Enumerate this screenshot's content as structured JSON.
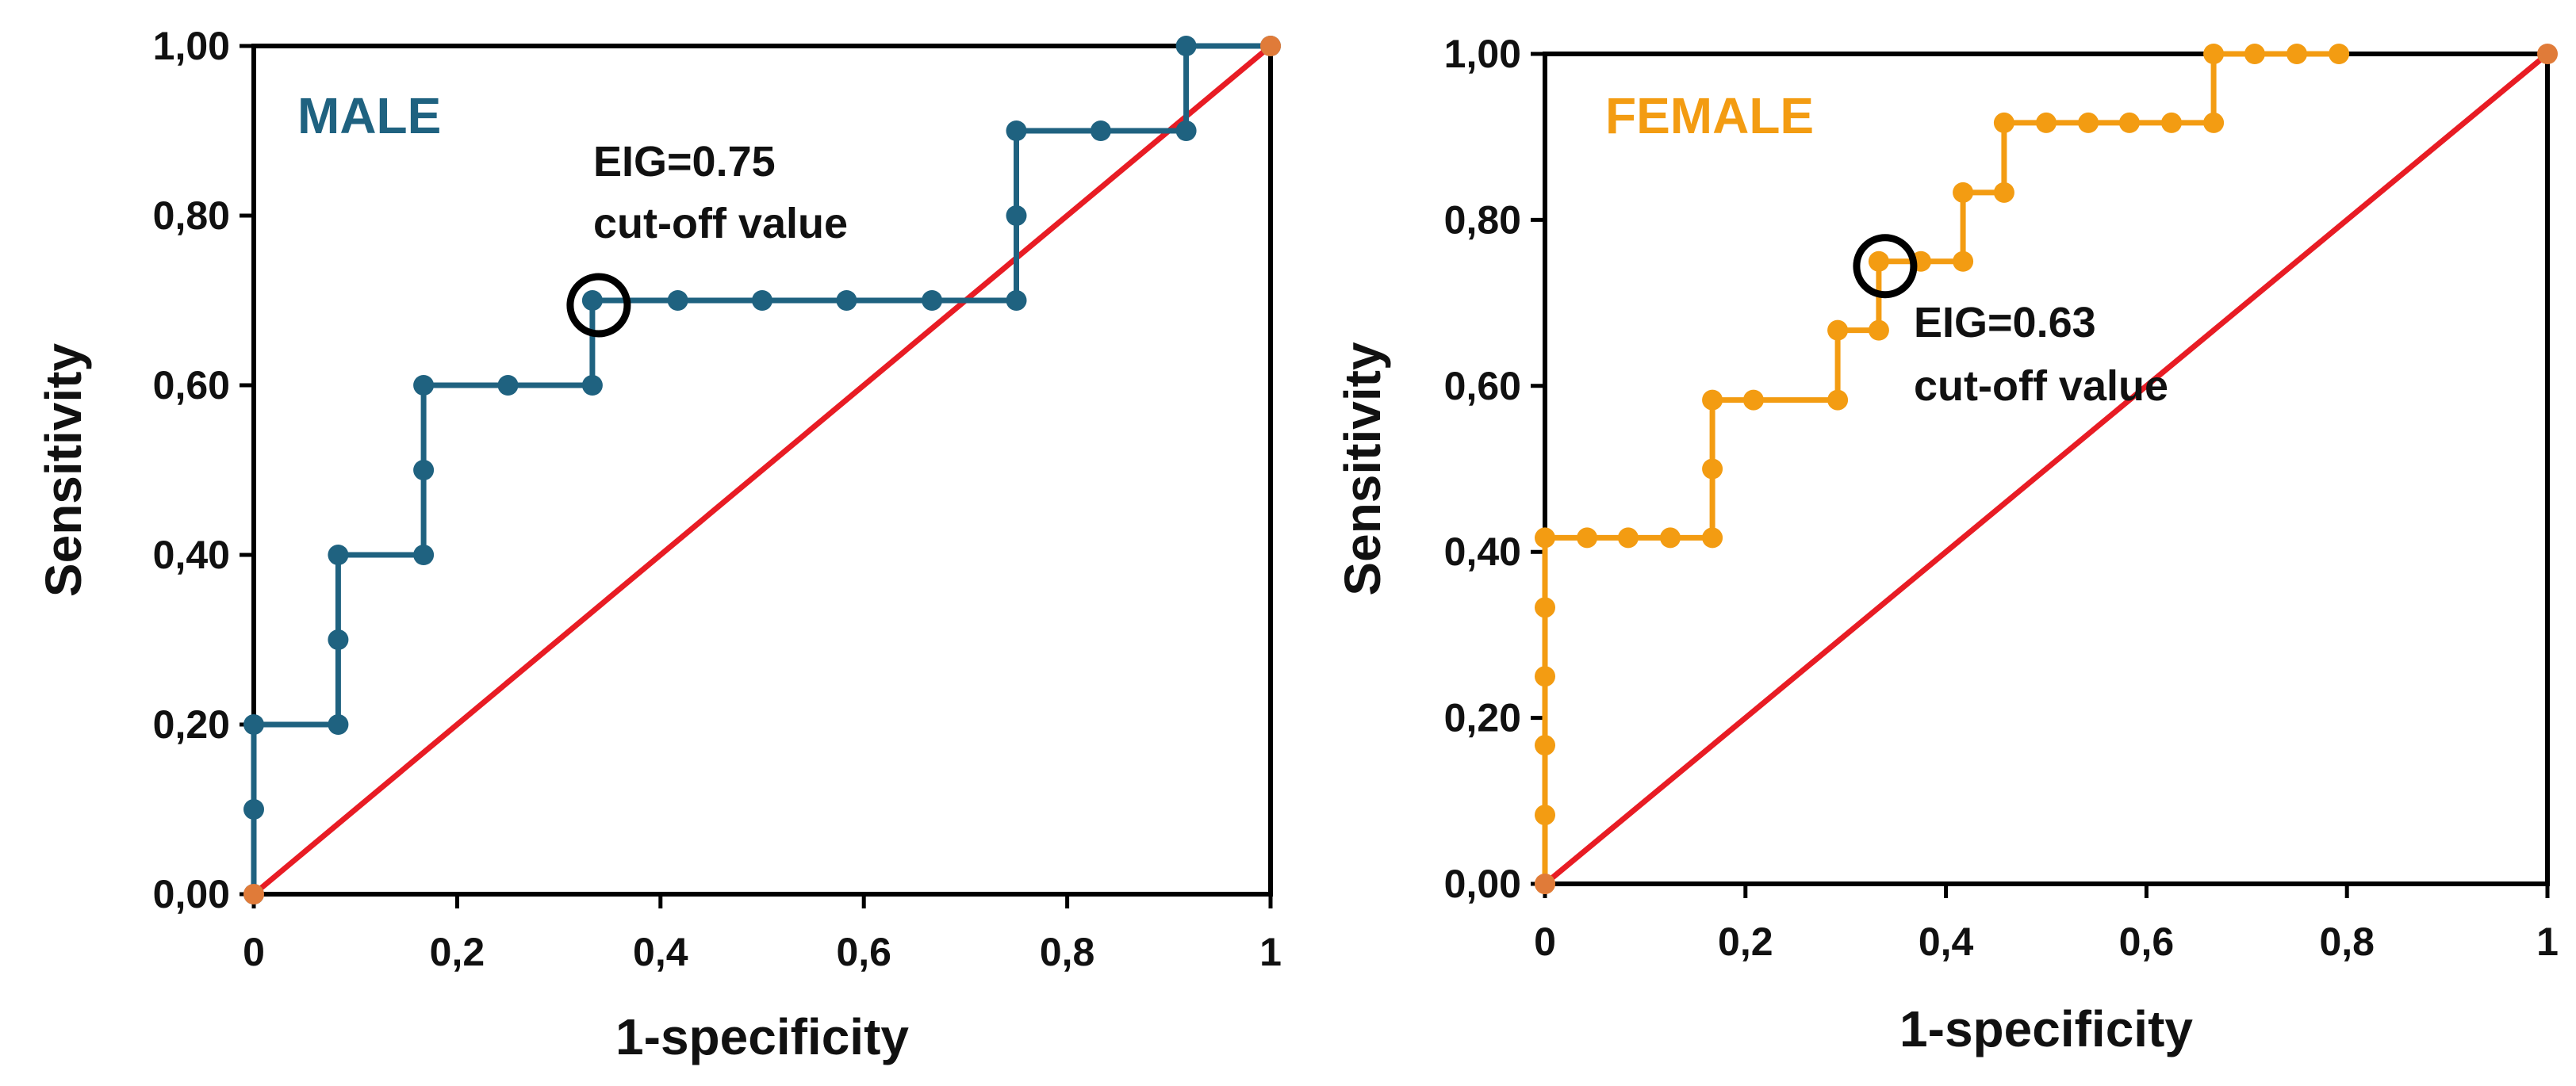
{
  "chart_data": [
    {
      "type": "line",
      "panel_label": "MALE",
      "title_color": "#1f6280",
      "series_color": "#1f6280",
      "reference_color": "#e81c24",
      "xlabel": "1-specificity",
      "ylabel": "Sensitivity",
      "xlim": [
        0,
        1
      ],
      "ylim": [
        0,
        1
      ],
      "x_ticks": [
        "0",
        "0,2",
        "0,4",
        "0,6",
        "0,8",
        "1"
      ],
      "y_ticks": [
        "0,00",
        "0,20",
        "0,40",
        "0,60",
        "0,80",
        "1,00"
      ],
      "series": [
        {
          "name": "ROC",
          "x": [
            0,
            0,
            0,
            0.083,
            0.083,
            0.083,
            0.167,
            0.167,
            0.167,
            0.25,
            0.333,
            0.333,
            0.417,
            0.5,
            0.583,
            0.667,
            0.75,
            0.75,
            0.75,
            0.833,
            0.917,
            0.917,
            1
          ],
          "y": [
            0,
            0.1,
            0.2,
            0.2,
            0.3,
            0.4,
            0.4,
            0.5,
            0.6,
            0.6,
            0.6,
            0.7,
            0.7,
            0.7,
            0.7,
            0.7,
            0.7,
            0.8,
            0.9,
            0.9,
            0.9,
            1.0,
            1.0
          ]
        },
        {
          "name": "Reference line",
          "x": [
            0,
            1
          ],
          "y": [
            0,
            1
          ]
        }
      ],
      "cutoff_point": {
        "x": 0.333,
        "y": 0.7
      },
      "annotation": [
        "EIG=0.75",
        "cut-off value"
      ]
    },
    {
      "type": "line",
      "panel_label": "FEMALE",
      "title_color": "#f39c12",
      "series_color": "#f39c12",
      "reference_color": "#e81c24",
      "xlabel": "1-specificity",
      "ylabel": "Sensitivity",
      "xlim": [
        0,
        1
      ],
      "ylim": [
        0,
        1
      ],
      "x_ticks": [
        "0",
        "0,2",
        "0,4",
        "0,6",
        "0,8",
        "1"
      ],
      "y_ticks": [
        "0,00",
        "0,20",
        "0,40",
        "0,60",
        "0,80",
        "1,00"
      ],
      "series": [
        {
          "name": "ROC",
          "x": [
            0,
            0,
            0,
            0,
            0,
            0,
            0.042,
            0.083,
            0.125,
            0.167,
            0.167,
            0.167,
            0.208,
            0.292,
            0.292,
            0.333,
            0.333,
            0.375,
            0.417,
            0.417,
            0.458,
            0.458,
            0.5,
            0.542,
            0.583,
            0.625,
            0.667,
            0.667,
            0.708,
            0.75,
            0.792
          ],
          "y": [
            0,
            0.083,
            0.167,
            0.25,
            0.333,
            0.417,
            0.417,
            0.417,
            0.417,
            0.417,
            0.5,
            0.583,
            0.583,
            0.583,
            0.667,
            0.667,
            0.75,
            0.75,
            0.75,
            0.833,
            0.833,
            0.917,
            0.917,
            0.917,
            0.917,
            0.917,
            0.917,
            1.0,
            1.0,
            1.0,
            1.0
          ]
        },
        {
          "name": "Reference line",
          "x": [
            0,
            1
          ],
          "y": [
            0,
            1
          ]
        }
      ],
      "cutoff_point": {
        "x": 0.333,
        "y": 0.75
      },
      "annotation": [
        "EIG=0.63",
        "cut-off value"
      ]
    }
  ]
}
